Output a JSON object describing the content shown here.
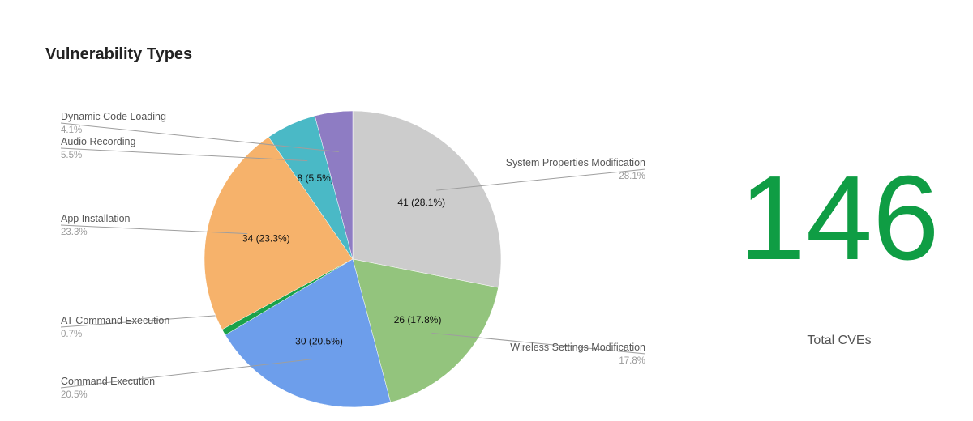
{
  "title": "Vulnerability Types",
  "chart_data": {
    "type": "pie",
    "title": "Vulnerability Types",
    "total": 146,
    "start_angle_deg": 0,
    "direction": "clockwise",
    "slices": [
      {
        "name": "System Properties Modification",
        "value": 41,
        "percent": "28.1%",
        "label": "41 (28.1%)",
        "color": "#cccccc"
      },
      {
        "name": "Wireless Settings Modification",
        "value": 26,
        "percent": "17.8%",
        "label": "26 (17.8%)",
        "color": "#93c47d"
      },
      {
        "name": "Command Execution",
        "value": 30,
        "percent": "20.5%",
        "label": "30 (20.5%)",
        "color": "#6d9eeb"
      },
      {
        "name": "AT Command Execution",
        "value": 1,
        "percent": "0.7%",
        "label": "",
        "color": "#1aa24a"
      },
      {
        "name": "App Installation",
        "value": 34,
        "percent": "23.3%",
        "label": "34 (23.3%)",
        "color": "#f6b26b"
      },
      {
        "name": "Audio Recording",
        "value": 8,
        "percent": "5.5%",
        "label": "8 (5.5%)",
        "color": "#4ab9c6"
      },
      {
        "name": "Dynamic Code Loading",
        "value": 6,
        "percent": "4.1%",
        "label": "",
        "color": "#8e7cc3"
      }
    ],
    "legend": "callout-labels"
  },
  "scorecard": {
    "value": "146",
    "label": "Total CVEs",
    "color": "#0f9d44"
  }
}
